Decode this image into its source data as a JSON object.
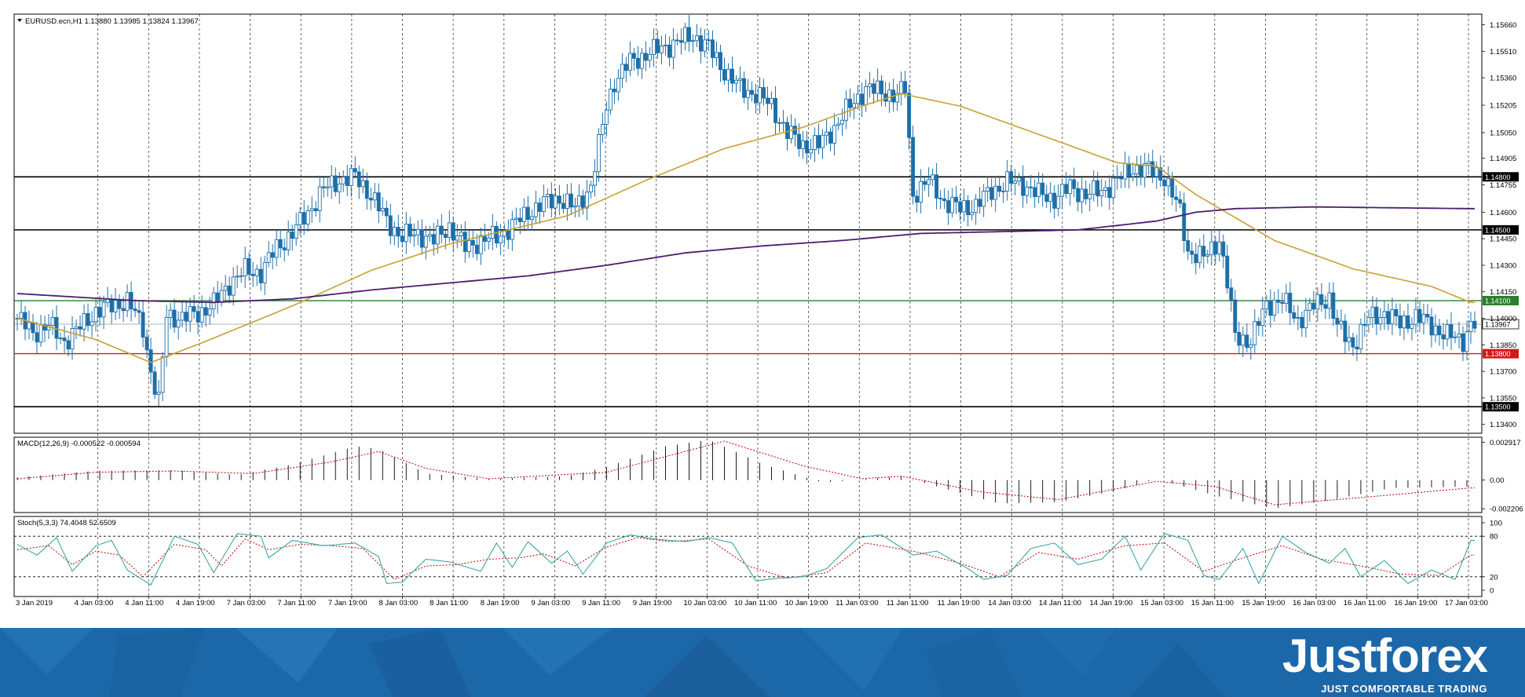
{
  "colors": {
    "background": "#ffffff",
    "frame": "#000000",
    "candle_bull": "#ffffff",
    "candle_bear": "#1d6fa8",
    "candle_outline": "#1d6fa8",
    "ma_fast": "#c9a030",
    "ma_slow": "#4b1e6e",
    "macd_signal": "#c00000",
    "stoch_main": "#3ba7a8",
    "stoch_signal": "#c00000",
    "line_support": "#d11a1a",
    "line_green": "#2a7d2a",
    "level_black": "#000000",
    "footer": "#1c67a8"
  },
  "chart_data": [
    {
      "type": "candlestick",
      "title": "EURUSD.ecn,H1 1.13880 1.13985 1.13824 1.13967",
      "ylim": [
        1.1335,
        1.1572
      ],
      "y_ticks": [
        "1.15660",
        "1.15510",
        "1.15360",
        "1.15205",
        "1.15050",
        "1.14905",
        "1.14755",
        "1.14600",
        "1.14450",
        "1.14300",
        "1.14150",
        "1.14000",
        "1.13850",
        "1.13700",
        "1.13550",
        "1.13400"
      ],
      "x_labels": [
        "3 Jan 2019",
        "4 Jan 03:00",
        "4 Jan 11:00",
        "4 Jan 19:00",
        "7 Jan 03:00",
        "7 Jan 11:00",
        "7 Jan 19:00",
        "8 Jan 03:00",
        "8 Jan 11:00",
        "8 Jan 19:00",
        "9 Jan 03:00",
        "9 Jan 11:00",
        "9 Jan 19:00",
        "10 Jan 03:00",
        "10 Jan 11:00",
        "10 Jan 19:00",
        "11 Jan 03:00",
        "11 Jan 11:00",
        "11 Jan 19:00",
        "14 Jan 03:00",
        "14 Jan 11:00",
        "14 Jan 19:00",
        "15 Jan 03:00",
        "15 Jan 11:00",
        "15 Jan 19:00",
        "16 Jan 03:00",
        "16 Jan 11:00",
        "16 Jan 19:00",
        "17 Jan 03:00"
      ],
      "close_anchors": [
        [
          0,
          1.14
        ],
        [
          4,
          1.1392
        ],
        [
          8,
          1.1396
        ],
        [
          12,
          1.1387
        ],
        [
          16,
          1.1395
        ],
        [
          20,
          1.1404
        ],
        [
          24,
          1.1407
        ],
        [
          28,
          1.141
        ],
        [
          32,
          1.1395
        ],
        [
          34,
          1.137
        ],
        [
          36,
          1.1352
        ],
        [
          38,
          1.1402
        ],
        [
          42,
          1.14
        ],
        [
          46,
          1.1403
        ],
        [
          50,
          1.1408
        ],
        [
          54,
          1.142
        ],
        [
          58,
          1.1427
        ],
        [
          62,
          1.1426
        ],
        [
          66,
          1.144
        ],
        [
          70,
          1.1448
        ],
        [
          74,
          1.146
        ],
        [
          78,
          1.1473
        ],
        [
          82,
          1.1478
        ],
        [
          86,
          1.148
        ],
        [
          90,
          1.147
        ],
        [
          94,
          1.1455
        ],
        [
          98,
          1.1446
        ],
        [
          102,
          1.1448
        ],
        [
          106,
          1.1444
        ],
        [
          110,
          1.1452
        ],
        [
          114,
          1.144
        ],
        [
          118,
          1.1444
        ],
        [
          122,
          1.1446
        ],
        [
          126,
          1.1452
        ],
        [
          130,
          1.146
        ],
        [
          134,
          1.1465
        ],
        [
          138,
          1.1468
        ],
        [
          142,
          1.1462
        ],
        [
          146,
          1.1475
        ],
        [
          150,
          1.152
        ],
        [
          152,
          1.1534
        ],
        [
          156,
          1.1545
        ],
        [
          160,
          1.1549
        ],
        [
          164,
          1.1553
        ],
        [
          168,
          1.1556
        ],
        [
          172,
          1.156
        ],
        [
          176,
          1.1553
        ],
        [
          180,
          1.154
        ],
        [
          184,
          1.153
        ],
        [
          188,
          1.1527
        ],
        [
          192,
          1.152
        ],
        [
          196,
          1.1505
        ],
        [
          200,
          1.1498
        ],
        [
          204,
          1.1498
        ],
        [
          208,
          1.1508
        ],
        [
          212,
          1.152
        ],
        [
          216,
          1.153
        ],
        [
          220,
          1.1528
        ],
        [
          224,
          1.1526
        ],
        [
          226,
          1.153
        ],
        [
          228,
          1.147
        ],
        [
          232,
          1.1478
        ],
        [
          236,
          1.1466
        ],
        [
          240,
          1.1462
        ],
        [
          244,
          1.1464
        ],
        [
          248,
          1.1472
        ],
        [
          252,
          1.1477
        ],
        [
          256,
          1.1476
        ],
        [
          260,
          1.147
        ],
        [
          264,
          1.1468
        ],
        [
          268,
          1.1474
        ],
        [
          272,
          1.147
        ],
        [
          276,
          1.1472
        ],
        [
          280,
          1.1478
        ],
        [
          284,
          1.1485
        ],
        [
          288,
          1.1484
        ],
        [
          292,
          1.148
        ],
        [
          296,
          1.146
        ],
        [
          298,
          1.1438
        ],
        [
          302,
          1.1434
        ],
        [
          306,
          1.1445
        ],
        [
          308,
          1.142
        ],
        [
          310,
          1.139
        ],
        [
          314,
          1.1387
        ],
        [
          318,
          1.1408
        ],
        [
          322,
          1.141
        ],
        [
          326,
          1.1399
        ],
        [
          330,
          1.1407
        ],
        [
          334,
          1.1412
        ],
        [
          336,
          1.1395
        ],
        [
          340,
          1.1385
        ],
        [
          344,
          1.14
        ],
        [
          348,
          1.1403
        ],
        [
          352,
          1.1397
        ],
        [
          356,
          1.1401
        ],
        [
          360,
          1.1396
        ],
        [
          364,
          1.139
        ],
        [
          368,
          1.1388
        ],
        [
          370,
          1.13967
        ]
      ],
      "ma_fast_anchors": [
        [
          0,
          1.14
        ],
        [
          20,
          1.1388
        ],
        [
          34,
          1.1375
        ],
        [
          48,
          1.1387
        ],
        [
          70,
          1.1407
        ],
        [
          90,
          1.1427
        ],
        [
          110,
          1.1442
        ],
        [
          140,
          1.1458
        ],
        [
          160,
          1.1478
        ],
        [
          180,
          1.1496
        ],
        [
          200,
          1.1508
        ],
        [
          215,
          1.152
        ],
        [
          225,
          1.1527
        ],
        [
          240,
          1.152
        ],
        [
          260,
          1.1504
        ],
        [
          280,
          1.1488
        ],
        [
          290,
          1.1486
        ],
        [
          300,
          1.147
        ],
        [
          320,
          1.1444
        ],
        [
          340,
          1.1428
        ],
        [
          360,
          1.1418
        ],
        [
          370,
          1.1409
        ]
      ],
      "ma_slow_anchors": [
        [
          0,
          1.1414
        ],
        [
          30,
          1.141
        ],
        [
          50,
          1.1409
        ],
        [
          70,
          1.1411
        ],
        [
          90,
          1.1416
        ],
        [
          110,
          1.142
        ],
        [
          130,
          1.1424
        ],
        [
          150,
          1.143
        ],
        [
          170,
          1.1437
        ],
        [
          190,
          1.1441
        ],
        [
          210,
          1.1444
        ],
        [
          230,
          1.1448
        ],
        [
          250,
          1.1449
        ],
        [
          270,
          1.145
        ],
        [
          290,
          1.1455
        ],
        [
          300,
          1.146
        ],
        [
          310,
          1.1462
        ],
        [
          330,
          1.1463
        ],
        [
          370,
          1.1462
        ]
      ],
      "horizontal_levels": [
        {
          "value": 1.148,
          "label": "1.14800",
          "color": "#000000"
        },
        {
          "value": 1.145,
          "label": "1.14500",
          "color": "#000000"
        },
        {
          "value": 1.141,
          "label": "1.14100",
          "color": "#2a7d2a"
        },
        {
          "value": 1.138,
          "label": "1.13800",
          "color": "#d11a1a"
        },
        {
          "value": 1.135,
          "label": "1.13500",
          "color": "#000000"
        }
      ],
      "current_price": {
        "value": 1.13967,
        "label": "1.13967"
      }
    },
    {
      "type": "bar",
      "title": "MACD(12,26,9) -0.000522 -0.000594",
      "y_ticks": [
        "0.002917",
        "0.00",
        "-0.002206"
      ],
      "ylim": [
        -0.0025,
        0.0033
      ],
      "hist_anchors": [
        [
          0,
          0.0002
        ],
        [
          20,
          0.00072
        ],
        [
          40,
          0.00075
        ],
        [
          56,
          0.0004
        ],
        [
          70,
          0.0012
        ],
        [
          86,
          0.0026
        ],
        [
          92,
          0.0024
        ],
        [
          104,
          0.0005
        ],
        [
          120,
          0.0001
        ],
        [
          140,
          0.0003
        ],
        [
          150,
          0.001
        ],
        [
          165,
          0.0026
        ],
        [
          176,
          0.0031
        ],
        [
          190,
          0.0012
        ],
        [
          205,
          -0.0002
        ],
        [
          225,
          0.0003
        ],
        [
          240,
          -0.001
        ],
        [
          250,
          -0.0018
        ],
        [
          265,
          -0.0017
        ],
        [
          280,
          -0.0008
        ],
        [
          290,
          0.0001
        ],
        [
          305,
          -0.0012
        ],
        [
          320,
          -0.0022
        ],
        [
          335,
          -0.0015
        ],
        [
          350,
          -0.0006
        ],
        [
          370,
          -0.0005
        ]
      ],
      "signal_anchors": [
        [
          0,
          0.0001
        ],
        [
          20,
          0.0006
        ],
        [
          40,
          0.0007
        ],
        [
          60,
          0.0005
        ],
        [
          80,
          0.0014
        ],
        [
          92,
          0.0022
        ],
        [
          104,
          0.0009
        ],
        [
          120,
          0.0001
        ],
        [
          150,
          0.0006
        ],
        [
          170,
          0.0022
        ],
        [
          180,
          0.003
        ],
        [
          200,
          0.0011
        ],
        [
          215,
          0.0001
        ],
        [
          225,
          0.0003
        ],
        [
          245,
          -0.0009
        ],
        [
          265,
          -0.0015
        ],
        [
          290,
          -0.0001
        ],
        [
          305,
          -0.0005
        ],
        [
          320,
          -0.0019
        ],
        [
          340,
          -0.0014
        ],
        [
          370,
          -0.0006
        ]
      ]
    },
    {
      "type": "line",
      "title": "Stoch(5,3,3) 74.4048 52.6509",
      "y_ticks": [
        "100",
        "80",
        "20",
        "0"
      ],
      "ylim": [
        0,
        100
      ],
      "main_anchors": [
        [
          0,
          68
        ],
        [
          5,
          52
        ],
        [
          10,
          78
        ],
        [
          14,
          28
        ],
        [
          20,
          66
        ],
        [
          24,
          74
        ],
        [
          28,
          30
        ],
        [
          34,
          8
        ],
        [
          40,
          80
        ],
        [
          46,
          68
        ],
        [
          50,
          26
        ],
        [
          56,
          84
        ],
        [
          62,
          80
        ],
        [
          64,
          48
        ],
        [
          70,
          74
        ],
        [
          78,
          66
        ],
        [
          86,
          70
        ],
        [
          92,
          50
        ],
        [
          94,
          10
        ],
        [
          98,
          12
        ],
        [
          104,
          46
        ],
        [
          110,
          42
        ],
        [
          118,
          28
        ],
        [
          122,
          70
        ],
        [
          126,
          34
        ],
        [
          130,
          72
        ],
        [
          136,
          40
        ],
        [
          140,
          58
        ],
        [
          144,
          24
        ],
        [
          150,
          70
        ],
        [
          156,
          82
        ],
        [
          162,
          76
        ],
        [
          170,
          72
        ],
        [
          176,
          78
        ],
        [
          182,
          70
        ],
        [
          188,
          14
        ],
        [
          194,
          18
        ],
        [
          200,
          20
        ],
        [
          206,
          32
        ],
        [
          214,
          78
        ],
        [
          220,
          82
        ],
        [
          228,
          52
        ],
        [
          234,
          58
        ],
        [
          242,
          32
        ],
        [
          246,
          16
        ],
        [
          252,
          22
        ],
        [
          258,
          62
        ],
        [
          264,
          70
        ],
        [
          270,
          38
        ],
        [
          276,
          46
        ],
        [
          282,
          80
        ],
        [
          286,
          30
        ],
        [
          292,
          84
        ],
        [
          298,
          74
        ],
        [
          302,
          22
        ],
        [
          306,
          16
        ],
        [
          312,
          62
        ],
        [
          316,
          10
        ],
        [
          322,
          80
        ],
        [
          328,
          56
        ],
        [
          334,
          40
        ],
        [
          338,
          62
        ],
        [
          342,
          20
        ],
        [
          348,
          44
        ],
        [
          354,
          10
        ],
        [
          360,
          30
        ],
        [
          366,
          16
        ],
        [
          370,
          74
        ]
      ],
      "signal_anchors": [
        [
          0,
          60
        ],
        [
          8,
          66
        ],
        [
          14,
          38
        ],
        [
          20,
          58
        ],
        [
          26,
          52
        ],
        [
          32,
          20
        ],
        [
          40,
          68
        ],
        [
          48,
          60
        ],
        [
          52,
          36
        ],
        [
          58,
          76
        ],
        [
          64,
          60
        ],
        [
          72,
          68
        ],
        [
          80,
          66
        ],
        [
          88,
          62
        ],
        [
          96,
          16
        ],
        [
          104,
          36
        ],
        [
          112,
          38
        ],
        [
          120,
          46
        ],
        [
          128,
          48
        ],
        [
          134,
          54
        ],
        [
          142,
          36
        ],
        [
          150,
          64
        ],
        [
          158,
          78
        ],
        [
          166,
          72
        ],
        [
          176,
          76
        ],
        [
          186,
          36
        ],
        [
          196,
          18
        ],
        [
          206,
          26
        ],
        [
          216,
          70
        ],
        [
          228,
          58
        ],
        [
          240,
          40
        ],
        [
          250,
          20
        ],
        [
          260,
          56
        ],
        [
          270,
          46
        ],
        [
          282,
          66
        ],
        [
          292,
          70
        ],
        [
          302,
          28
        ],
        [
          312,
          48
        ],
        [
          322,
          66
        ],
        [
          332,
          46
        ],
        [
          342,
          36
        ],
        [
          352,
          24
        ],
        [
          362,
          22
        ],
        [
          370,
          52
        ]
      ],
      "levels": [
        80,
        20
      ]
    }
  ],
  "footer": {
    "brand_name": "Justforex",
    "tagline": "JUST COMFORTABLE TRADING"
  }
}
